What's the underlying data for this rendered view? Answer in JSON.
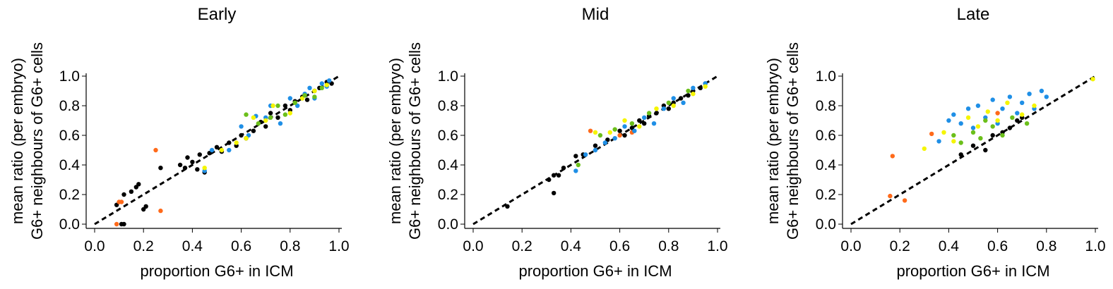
{
  "chart_data": [
    {
      "type": "scatter",
      "title": "Early",
      "xlabel": "proportion G6+ in ICM",
      "ylabel": [
        "mean ratio (per embryo)",
        "G6+ neighbours of G6+ cells"
      ],
      "xlim": [
        0.0,
        1.0
      ],
      "ylim": [
        0.0,
        1.0
      ],
      "xticks": [
        "0.0",
        "0.2",
        "0.4",
        "0.6",
        "0.8",
        "1.0"
      ],
      "yticks": [
        "0.0",
        "0.2",
        "0.4",
        "0.6",
        "0.8",
        "1.0"
      ],
      "reference_line": "y = x (dashed)",
      "grid": false,
      "series": [
        {
          "color": "#000000",
          "points": [
            [
              0.09,
              0.13
            ],
            [
              0.11,
              0.0
            ],
            [
              0.12,
              0.0
            ],
            [
              0.12,
              0.2
            ],
            [
              0.15,
              0.22
            ],
            [
              0.17,
              0.25
            ],
            [
              0.18,
              0.27
            ],
            [
              0.2,
              0.1
            ],
            [
              0.21,
              0.12
            ],
            [
              0.27,
              0.38
            ],
            [
              0.35,
              0.4
            ],
            [
              0.37,
              0.38
            ],
            [
              0.38,
              0.45
            ],
            [
              0.4,
              0.42
            ],
            [
              0.42,
              0.37
            ],
            [
              0.43,
              0.47
            ],
            [
              0.45,
              0.35
            ],
            [
              0.47,
              0.48
            ],
            [
              0.5,
              0.52
            ],
            [
              0.52,
              0.49
            ],
            [
              0.55,
              0.55
            ],
            [
              0.58,
              0.53
            ],
            [
              0.6,
              0.6
            ],
            [
              0.62,
              0.58
            ],
            [
              0.65,
              0.63
            ],
            [
              0.68,
              0.69
            ],
            [
              0.7,
              0.66
            ],
            [
              0.72,
              0.75
            ],
            [
              0.75,
              0.72
            ],
            [
              0.78,
              0.8
            ],
            [
              0.8,
              0.77
            ],
            [
              0.82,
              0.83
            ],
            [
              0.85,
              0.86
            ],
            [
              0.87,
              0.84
            ],
            [
              0.9,
              0.9
            ],
            [
              0.92,
              0.92
            ],
            [
              0.95,
              0.96
            ],
            [
              0.97,
              0.95
            ]
          ]
        },
        {
          "color": "#ff6a1a",
          "points": [
            [
              0.09,
              0.0
            ],
            [
              0.1,
              0.15
            ],
            [
              0.11,
              0.15
            ],
            [
              0.25,
              0.5
            ],
            [
              0.27,
              0.09
            ]
          ]
        },
        {
          "color": "#1f8fe6",
          "points": [
            [
              0.45,
              0.36
            ],
            [
              0.48,
              0.5
            ],
            [
              0.55,
              0.5
            ],
            [
              0.6,
              0.66
            ],
            [
              0.63,
              0.6
            ],
            [
              0.66,
              0.73
            ],
            [
              0.7,
              0.72
            ],
            [
              0.72,
              0.8
            ],
            [
              0.76,
              0.68
            ],
            [
              0.8,
              0.85
            ],
            [
              0.83,
              0.8
            ],
            [
              0.86,
              0.88
            ],
            [
              0.88,
              0.92
            ],
            [
              0.9,
              0.85
            ],
            [
              0.93,
              0.95
            ],
            [
              0.95,
              0.93
            ],
            [
              0.96,
              0.97
            ]
          ]
        },
        {
          "color": "#f5f500",
          "points": [
            [
              0.45,
              0.38
            ],
            [
              0.52,
              0.5
            ],
            [
              0.58,
              0.55
            ],
            [
              0.62,
              0.58
            ],
            [
              0.65,
              0.72
            ],
            [
              0.7,
              0.7
            ],
            [
              0.73,
              0.8
            ],
            [
              0.8,
              0.75
            ],
            [
              0.85,
              0.85
            ],
            [
              0.9,
              0.9
            ],
            [
              0.95,
              0.94
            ]
          ]
        },
        {
          "color": "#6bbf1a",
          "points": [
            [
              0.62,
              0.74
            ],
            [
              0.67,
              0.68
            ],
            [
              0.72,
              0.72
            ],
            [
              0.75,
              0.8
            ],
            [
              0.78,
              0.74
            ],
            [
              0.82,
              0.82
            ],
            [
              0.86,
              0.87
            ],
            [
              0.9,
              0.86
            ],
            [
              0.93,
              0.92
            ]
          ]
        }
      ]
    },
    {
      "type": "scatter",
      "title": "Mid",
      "xlabel": "proportion G6+ in ICM",
      "ylabel": [
        "mean ratio (per embryo)",
        "G6+ neighbours of G6+ cells"
      ],
      "xlim": [
        0.0,
        1.0
      ],
      "ylim": [
        0.0,
        1.0
      ],
      "xticks": [
        "0.0",
        "0.2",
        "0.4",
        "0.6",
        "0.8",
        "1.0"
      ],
      "yticks": [
        "0.0",
        "0.2",
        "0.4",
        "0.6",
        "0.8",
        "1.0"
      ],
      "reference_line": "y = x (dashed)",
      "grid": false,
      "series": [
        {
          "color": "#000000",
          "points": [
            [
              0.14,
              0.12
            ],
            [
              0.31,
              0.3
            ],
            [
              0.33,
              0.33
            ],
            [
              0.33,
              0.21
            ],
            [
              0.35,
              0.33
            ],
            [
              0.37,
              0.38
            ],
            [
              0.42,
              0.46
            ],
            [
              0.45,
              0.47
            ],
            [
              0.5,
              0.53
            ],
            [
              0.55,
              0.57
            ],
            [
              0.6,
              0.63
            ],
            [
              0.62,
              0.6
            ],
            [
              0.65,
              0.65
            ],
            [
              0.68,
              0.7
            ],
            [
              0.7,
              0.68
            ],
            [
              0.72,
              0.73
            ],
            [
              0.75,
              0.75
            ],
            [
              0.78,
              0.8
            ],
            [
              0.8,
              0.78
            ],
            [
              0.82,
              0.82
            ],
            [
              0.85,
              0.85
            ],
            [
              0.88,
              0.87
            ],
            [
              0.9,
              0.9
            ],
            [
              0.93,
              0.92
            ],
            [
              0.95,
              0.95
            ]
          ]
        },
        {
          "color": "#ff6a1a",
          "points": [
            [
              0.48,
              0.63
            ],
            [
              0.6,
              0.6
            ],
            [
              0.65,
              0.62
            ]
          ]
        },
        {
          "color": "#1f8fe6",
          "points": [
            [
              0.42,
              0.36
            ],
            [
              0.46,
              0.47
            ],
            [
              0.5,
              0.5
            ],
            [
              0.54,
              0.55
            ],
            [
              0.58,
              0.58
            ],
            [
              0.62,
              0.66
            ],
            [
              0.66,
              0.63
            ],
            [
              0.7,
              0.72
            ],
            [
              0.74,
              0.68
            ],
            [
              0.78,
              0.78
            ],
            [
              0.82,
              0.85
            ],
            [
              0.86,
              0.82
            ],
            [
              0.9,
              0.92
            ],
            [
              0.95,
              0.95
            ]
          ]
        },
        {
          "color": "#f5f500",
          "points": [
            [
              0.5,
              0.62
            ],
            [
              0.56,
              0.62
            ],
            [
              0.62,
              0.7
            ],
            [
              0.68,
              0.66
            ],
            [
              0.75,
              0.78
            ],
            [
              0.82,
              0.8
            ],
            [
              0.9,
              0.88
            ],
            [
              0.95,
              0.93
            ]
          ]
        },
        {
          "color": "#6bbf1a",
          "points": [
            [
              0.43,
              0.4
            ],
            [
              0.52,
              0.6
            ],
            [
              0.58,
              0.64
            ],
            [
              0.65,
              0.68
            ],
            [
              0.72,
              0.75
            ],
            [
              0.8,
              0.82
            ],
            [
              0.88,
              0.9
            ]
          ]
        }
      ]
    },
    {
      "type": "scatter",
      "title": "Late",
      "xlabel": "proportion G6+ in ICM",
      "ylabel": [
        "mean ratio (per embryo)",
        "G6+ neighbours of G6+ cells"
      ],
      "xlim": [
        0.0,
        1.0
      ],
      "ylim": [
        0.0,
        1.0
      ],
      "xticks": [
        "0.0",
        "0.2",
        "0.4",
        "0.6",
        "0.8",
        "1.0"
      ],
      "yticks": [
        "0.0",
        "0.2",
        "0.4",
        "0.6",
        "0.8",
        "1.0"
      ],
      "reference_line": "y = x (dashed)",
      "grid": false,
      "series": [
        {
          "color": "#000000",
          "points": [
            [
              0.45,
              0.47
            ],
            [
              0.5,
              0.53
            ],
            [
              0.55,
              0.5
            ],
            [
              0.58,
              0.6
            ],
            [
              0.62,
              0.62
            ],
            [
              0.65,
              0.65
            ],
            [
              0.68,
              0.7
            ],
            [
              0.7,
              0.72
            ]
          ]
        },
        {
          "color": "#ff6a1a",
          "points": [
            [
              0.16,
              0.19
            ],
            [
              0.17,
              0.46
            ],
            [
              0.22,
              0.16
            ],
            [
              0.33,
              0.61
            ],
            [
              0.6,
              0.75
            ]
          ]
        },
        {
          "color": "#1f8fe6",
          "points": [
            [
              0.36,
              0.56
            ],
            [
              0.4,
              0.7
            ],
            [
              0.42,
              0.74
            ],
            [
              0.45,
              0.68
            ],
            [
              0.48,
              0.78
            ],
            [
              0.5,
              0.65
            ],
            [
              0.52,
              0.8
            ],
            [
              0.55,
              0.72
            ],
            [
              0.58,
              0.84
            ],
            [
              0.6,
              0.68
            ],
            [
              0.62,
              0.78
            ],
            [
              0.65,
              0.86
            ],
            [
              0.68,
              0.75
            ],
            [
              0.7,
              0.82
            ],
            [
              0.73,
              0.88
            ],
            [
              0.75,
              0.78
            ],
            [
              0.78,
              0.9
            ],
            [
              0.8,
              0.86
            ]
          ]
        },
        {
          "color": "#f5f500",
          "points": [
            [
              0.3,
              0.51
            ],
            [
              0.38,
              0.62
            ],
            [
              0.42,
              0.56
            ],
            [
              0.48,
              0.72
            ],
            [
              0.52,
              0.66
            ],
            [
              0.56,
              0.76
            ],
            [
              0.6,
              0.7
            ],
            [
              0.64,
              0.82
            ],
            [
              0.7,
              0.74
            ],
            [
              0.75,
              0.8
            ],
            [
              0.99,
              0.98
            ]
          ]
        },
        {
          "color": "#6bbf1a",
          "points": [
            [
              0.42,
              0.6
            ],
            [
              0.45,
              0.55
            ],
            [
              0.5,
              0.62
            ],
            [
              0.53,
              0.58
            ],
            [
              0.55,
              0.7
            ],
            [
              0.58,
              0.66
            ],
            [
              0.62,
              0.6
            ],
            [
              0.66,
              0.72
            ],
            [
              0.72,
              0.68
            ]
          ]
        }
      ]
    }
  ]
}
